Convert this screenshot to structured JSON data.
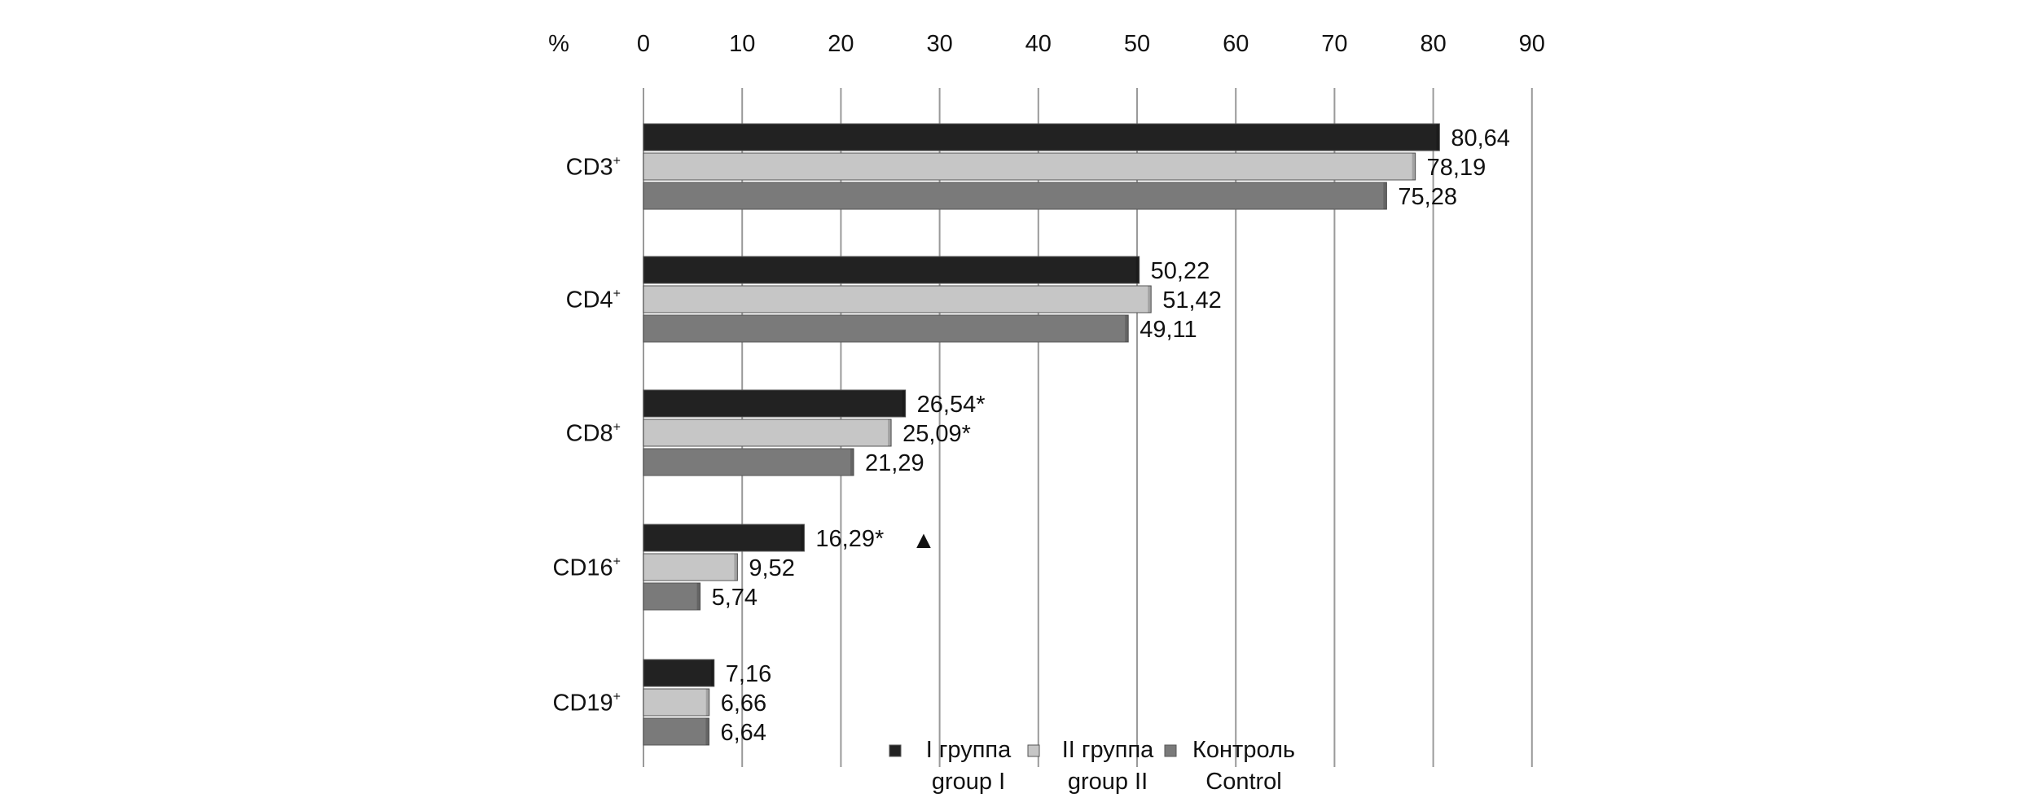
{
  "chart_data": {
    "type": "bar",
    "orientation": "horizontal",
    "axis_label": "%",
    "xlim": [
      0,
      90
    ],
    "x_ticks": [
      "0",
      "10",
      "20",
      "30",
      "40",
      "50",
      "60",
      "70",
      "80",
      "90"
    ],
    "x_axis_position": "top",
    "grid": true,
    "categories": [
      {
        "label": "CD3",
        "sup": "+"
      },
      {
        "label": "CD4",
        "sup": "+"
      },
      {
        "label": "CD8",
        "sup": "+"
      },
      {
        "label": "CD16",
        "sup": "+"
      },
      {
        "label": "CD19",
        "sup": "+"
      }
    ],
    "series": [
      {
        "name_ru": "I группа",
        "name_en": "group I",
        "color": "#222222",
        "values": [
          80.64,
          50.22,
          26.54,
          16.29,
          7.16
        ],
        "labels": [
          "80,64",
          "50,22",
          "26,54*",
          "16,29*",
          "7,16"
        ]
      },
      {
        "name_ru": "II группа",
        "name_en": "group II",
        "color": "#c6c6c6",
        "values": [
          78.19,
          51.42,
          25.09,
          9.52,
          6.66
        ],
        "labels": [
          "78,19",
          "51,42",
          "25,09*",
          "9,52",
          "6,66"
        ]
      },
      {
        "name_ru": "Контроль",
        "name_en": "Control",
        "color": "#7a7a7a",
        "values": [
          75.28,
          49.11,
          21.29,
          5.74,
          6.64
        ],
        "labels": [
          "75,28",
          "49,11",
          "21,29",
          "5,74",
          "6,64"
        ]
      }
    ],
    "annotations": [
      {
        "symbol": "▲",
        "category_index": 3,
        "series_index": 0,
        "meaning": "marker beside group I value"
      }
    ],
    "legend_placement": "bottom-right"
  }
}
